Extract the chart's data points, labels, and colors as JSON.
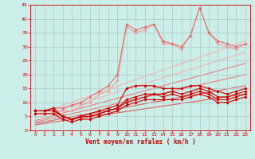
{
  "bg_color": "#cceee8",
  "grid_color": "#b0c8c4",
  "xlabel": "Vent moyen/en rafales ( km/h )",
  "xlabel_color": "#cc0000",
  "tick_color": "#cc0000",
  "xlim": [
    -0.5,
    23.5
  ],
  "ylim": [
    0,
    45
  ],
  "xticks": [
    0,
    1,
    2,
    3,
    4,
    5,
    6,
    7,
    8,
    9,
    10,
    11,
    12,
    13,
    14,
    15,
    16,
    17,
    18,
    19,
    20,
    21,
    22,
    23
  ],
  "yticks": [
    0,
    5,
    10,
    15,
    20,
    25,
    30,
    35,
    40,
    45
  ],
  "series": [
    {
      "x": [
        0,
        23
      ],
      "y": [
        5.5,
        32
      ],
      "color": "#f5b8b8",
      "marker": null,
      "markersize": 0,
      "linewidth": 0.9,
      "zorder": 1
    },
    {
      "x": [
        0,
        23
      ],
      "y": [
        4.5,
        28
      ],
      "color": "#f5b8b8",
      "marker": null,
      "markersize": 0,
      "linewidth": 0.9,
      "zorder": 1
    },
    {
      "x": [
        0,
        23
      ],
      "y": [
        3.5,
        24
      ],
      "color": "#e88888",
      "marker": null,
      "markersize": 0,
      "linewidth": 0.9,
      "zorder": 1
    },
    {
      "x": [
        0,
        23
      ],
      "y": [
        3.0,
        20
      ],
      "color": "#e88888",
      "marker": null,
      "markersize": 0,
      "linewidth": 0.9,
      "zorder": 1
    },
    {
      "x": [
        0,
        23
      ],
      "y": [
        2.5,
        16
      ],
      "color": "#dd6666",
      "marker": null,
      "markersize": 0,
      "linewidth": 0.9,
      "zorder": 1
    },
    {
      "x": [
        0,
        23
      ],
      "y": [
        2.0,
        13
      ],
      "color": "#dd6666",
      "marker": null,
      "markersize": 0,
      "linewidth": 0.9,
      "zorder": 1
    },
    {
      "x": [
        0,
        1,
        2,
        3,
        4,
        5,
        6,
        7,
        8,
        9,
        10,
        11,
        12,
        13,
        14,
        15,
        16,
        17,
        18,
        19,
        20,
        21,
        22,
        23
      ],
      "y": [
        6,
        6,
        6,
        7,
        7,
        9,
        10,
        13,
        14,
        18,
        37,
        35,
        36,
        38,
        31,
        31,
        29,
        34,
        44,
        35,
        31,
        30,
        29,
        31
      ],
      "color": "#f0a0a0",
      "marker": "D",
      "markersize": 1.8,
      "linewidth": 0.8,
      "zorder": 3
    },
    {
      "x": [
        0,
        1,
        2,
        3,
        4,
        5,
        6,
        7,
        8,
        9,
        10,
        11,
        12,
        13,
        14,
        15,
        16,
        17,
        18,
        19,
        20,
        21,
        22,
        23
      ],
      "y": [
        7,
        7,
        8,
        8,
        9,
        10,
        12,
        14,
        16,
        20,
        38,
        36,
        37,
        38,
        32,
        31,
        30,
        34,
        44,
        35,
        32,
        31,
        30,
        31
      ],
      "color": "#e07070",
      "marker": "D",
      "markersize": 1.8,
      "linewidth": 0.8,
      "zorder": 3
    },
    {
      "x": [
        0,
        1,
        2,
        3,
        4,
        5,
        6,
        7,
        8,
        9,
        10,
        11,
        12,
        13,
        14,
        15,
        16,
        17,
        18,
        19,
        20,
        21,
        22,
        23
      ],
      "y": [
        7,
        7,
        8,
        5,
        4,
        5,
        6,
        7,
        8,
        9,
        15,
        16,
        16,
        16,
        15,
        15,
        15,
        16,
        16,
        15,
        14,
        13,
        14,
        15
      ],
      "color": "#cc0000",
      "marker": "D",
      "markersize": 1.8,
      "linewidth": 0.8,
      "zorder": 4
    },
    {
      "x": [
        0,
        1,
        2,
        3,
        4,
        5,
        6,
        7,
        8,
        9,
        10,
        11,
        12,
        13,
        14,
        15,
        16,
        17,
        18,
        19,
        20,
        21,
        22,
        23
      ],
      "y": [
        7,
        7,
        7,
        5,
        4,
        5,
        5,
        6,
        7,
        8,
        11,
        12,
        13,
        13,
        13,
        14,
        13,
        14,
        15,
        14,
        12,
        12,
        13,
        14
      ],
      "color": "#cc0000",
      "marker": "D",
      "markersize": 1.8,
      "linewidth": 0.8,
      "zorder": 4
    },
    {
      "x": [
        0,
        1,
        2,
        3,
        4,
        5,
        6,
        7,
        8,
        9,
        10,
        11,
        12,
        13,
        14,
        15,
        16,
        17,
        18,
        19,
        20,
        21,
        22,
        23
      ],
      "y": [
        7,
        7,
        7,
        5,
        4,
        5,
        5,
        6,
        7,
        8,
        10,
        11,
        12,
        13,
        12,
        13,
        12,
        13,
        14,
        13,
        11,
        11,
        12,
        13
      ],
      "color": "#cc0000",
      "marker": "D",
      "markersize": 1.8,
      "linewidth": 0.8,
      "zorder": 4
    },
    {
      "x": [
        0,
        1,
        2,
        3,
        4,
        5,
        6,
        7,
        8,
        9,
        10,
        11,
        12,
        13,
        14,
        15,
        16,
        17,
        18,
        19,
        20,
        21,
        22,
        23
      ],
      "y": [
        6,
        6,
        6,
        4,
        3,
        4,
        4,
        5,
        6,
        7,
        9,
        10,
        11,
        11,
        11,
        11,
        11,
        12,
        13,
        12,
        10,
        10,
        11,
        12
      ],
      "color": "#cc0000",
      "marker": "D",
      "markersize": 1.8,
      "linewidth": 0.8,
      "zorder": 4
    }
  ]
}
